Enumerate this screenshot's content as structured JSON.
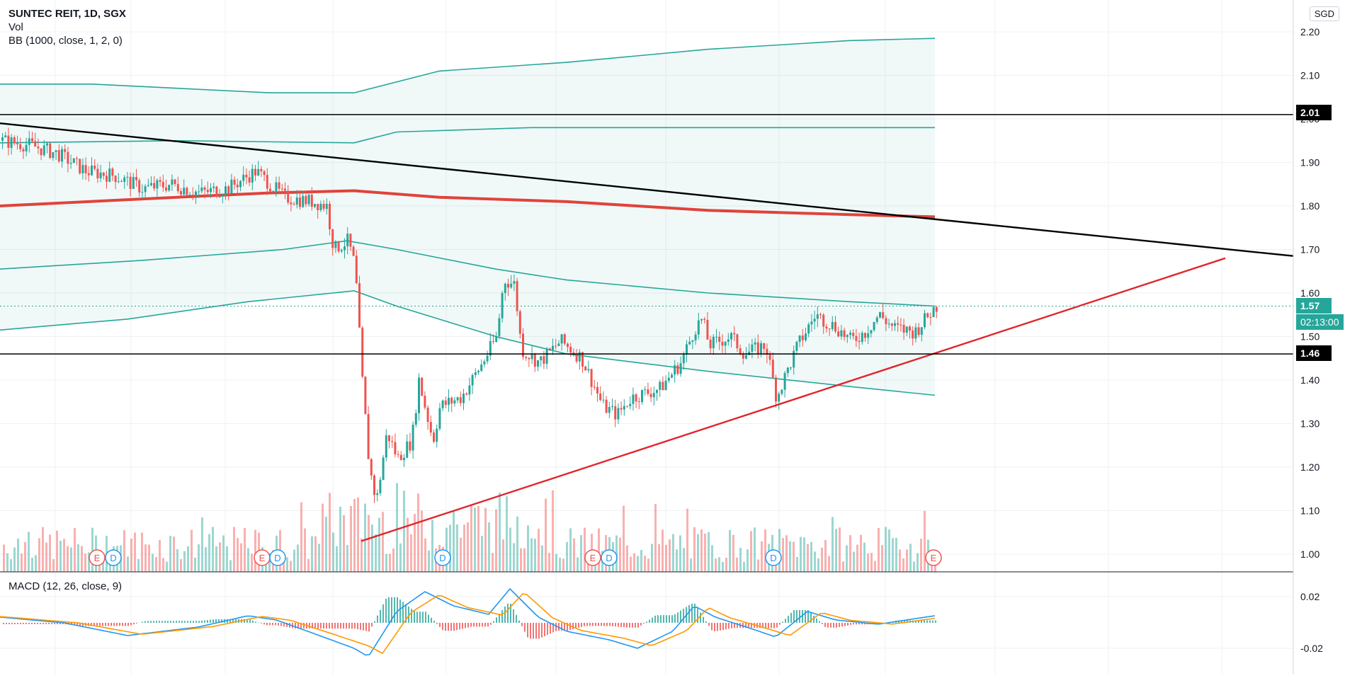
{
  "header": {
    "symbol_line": "SUNTEC REIT, 1D, SGX",
    "vol_label": "Vol",
    "bb_label": "BB (1000, close, 1, 2, 0)",
    "currency": "SGD"
  },
  "macd": {
    "label": "MACD (12, 26, close, 9)",
    "ticks": [
      "0.02",
      "-0.02"
    ]
  },
  "price_axis": {
    "ticks": [
      "2.20",
      "2.10",
      "2.00",
      "1.90",
      "1.80",
      "1.70",
      "1.60",
      "1.50",
      "1.40",
      "1.30",
      "1.20",
      "1.10",
      "1.00"
    ]
  },
  "tags": {
    "resistance": "2.01",
    "last_price": "1.57",
    "countdown": "02:13:00",
    "support": "1.46"
  },
  "event_markers": [
    "E",
    "D",
    "E",
    "D",
    "D",
    "E",
    "D",
    "D",
    "E"
  ],
  "colors": {
    "up": "#26a69a",
    "down": "#ef5350",
    "bb_band": "#26a69a",
    "bb_basis": "#e0433b",
    "trend_black": "#000000",
    "trend_red": "#e0262b",
    "macd_line": "#2196f3",
    "signal_line": "#ff9800"
  },
  "chart_data": {
    "type": "line",
    "price_range": [
      0.96,
      2.24
    ],
    "bb_upper_outer": [
      [
        0,
        2.08
      ],
      [
        130,
        2.08
      ],
      [
        380,
        2.06
      ],
      [
        500,
        2.06
      ],
      [
        620,
        2.11
      ],
      [
        800,
        2.13
      ],
      [
        1000,
        2.16
      ],
      [
        1200,
        2.18
      ],
      [
        1320,
        2.185
      ]
    ],
    "bb_upper_inner": [
      [
        0,
        1.945
      ],
      [
        250,
        1.95
      ],
      [
        500,
        1.945
      ],
      [
        560,
        1.97
      ],
      [
        750,
        1.98
      ],
      [
        1100,
        1.98
      ],
      [
        1320,
        1.98
      ]
    ],
    "bb_basis": [
      [
        0,
        1.8
      ],
      [
        250,
        1.82
      ],
      [
        380,
        1.83
      ],
      [
        500,
        1.835
      ],
      [
        620,
        1.82
      ],
      [
        800,
        1.81
      ],
      [
        1000,
        1.79
      ],
      [
        1200,
        1.78
      ],
      [
        1320,
        1.775
      ]
    ],
    "bb_lower_inner": [
      [
        0,
        1.655
      ],
      [
        200,
        1.675
      ],
      [
        400,
        1.7
      ],
      [
        490,
        1.72
      ],
      [
        560,
        1.7
      ],
      [
        700,
        1.655
      ],
      [
        800,
        1.63
      ],
      [
        1000,
        1.6
      ],
      [
        1200,
        1.58
      ],
      [
        1320,
        1.57
      ]
    ],
    "bb_lower_outer": [
      [
        0,
        1.515
      ],
      [
        180,
        1.54
      ],
      [
        350,
        1.58
      ],
      [
        500,
        1.605
      ],
      [
        560,
        1.57
      ],
      [
        700,
        1.5
      ],
      [
        800,
        1.46
      ],
      [
        1000,
        1.42
      ],
      [
        1200,
        1.385
      ],
      [
        1320,
        1.365
      ]
    ],
    "trend_resistance": [
      [
        0,
        1.99
      ],
      [
        1826,
        1.685
      ]
    ],
    "trend_support": [
      [
        510,
        1.03
      ],
      [
        1730,
        1.68
      ]
    ],
    "support_level": 1.46,
    "resistance_level": 2.01,
    "close_path": [
      [
        0,
        1.95
      ],
      [
        40,
        1.94
      ],
      [
        80,
        1.92
      ],
      [
        120,
        1.88
      ],
      [
        160,
        1.87
      ],
      [
        200,
        1.84
      ],
      [
        240,
        1.85
      ],
      [
        280,
        1.83
      ],
      [
        320,
        1.84
      ],
      [
        360,
        1.88
      ],
      [
        380,
        1.85
      ],
      [
        400,
        1.82
      ],
      [
        440,
        1.81
      ],
      [
        460,
        1.8
      ],
      [
        470,
        1.7
      ],
      [
        490,
        1.72
      ],
      [
        500,
        1.66
      ],
      [
        510,
        1.4
      ],
      [
        520,
        1.2
      ],
      [
        530,
        1.12
      ],
      [
        545,
        1.28
      ],
      [
        560,
        1.22
      ],
      [
        580,
        1.26
      ],
      [
        590,
        1.4
      ],
      [
        610,
        1.26
      ],
      [
        620,
        1.34
      ],
      [
        650,
        1.36
      ],
      [
        680,
        1.44
      ],
      [
        700,
        1.5
      ],
      [
        710,
        1.63
      ],
      [
        725,
        1.62
      ],
      [
        735,
        1.47
      ],
      [
        760,
        1.44
      ],
      [
        790,
        1.49
      ],
      [
        820,
        1.45
      ],
      [
        850,
        1.34
      ],
      [
        870,
        1.32
      ],
      [
        890,
        1.36
      ],
      [
        930,
        1.38
      ],
      [
        960,
        1.44
      ],
      [
        980,
        1.52
      ],
      [
        990,
        1.54
      ],
      [
        1000,
        1.48
      ],
      [
        1030,
        1.5
      ],
      [
        1050,
        1.46
      ],
      [
        1080,
        1.48
      ],
      [
        1095,
        1.36
      ],
      [
        1110,
        1.42
      ],
      [
        1125,
        1.48
      ],
      [
        1150,
        1.55
      ],
      [
        1180,
        1.52
      ],
      [
        1200,
        1.49
      ],
      [
        1220,
        1.51
      ],
      [
        1240,
        1.55
      ],
      [
        1260,
        1.52
      ],
      [
        1290,
        1.51
      ],
      [
        1310,
        1.55
      ],
      [
        1320,
        1.57
      ]
    ]
  }
}
